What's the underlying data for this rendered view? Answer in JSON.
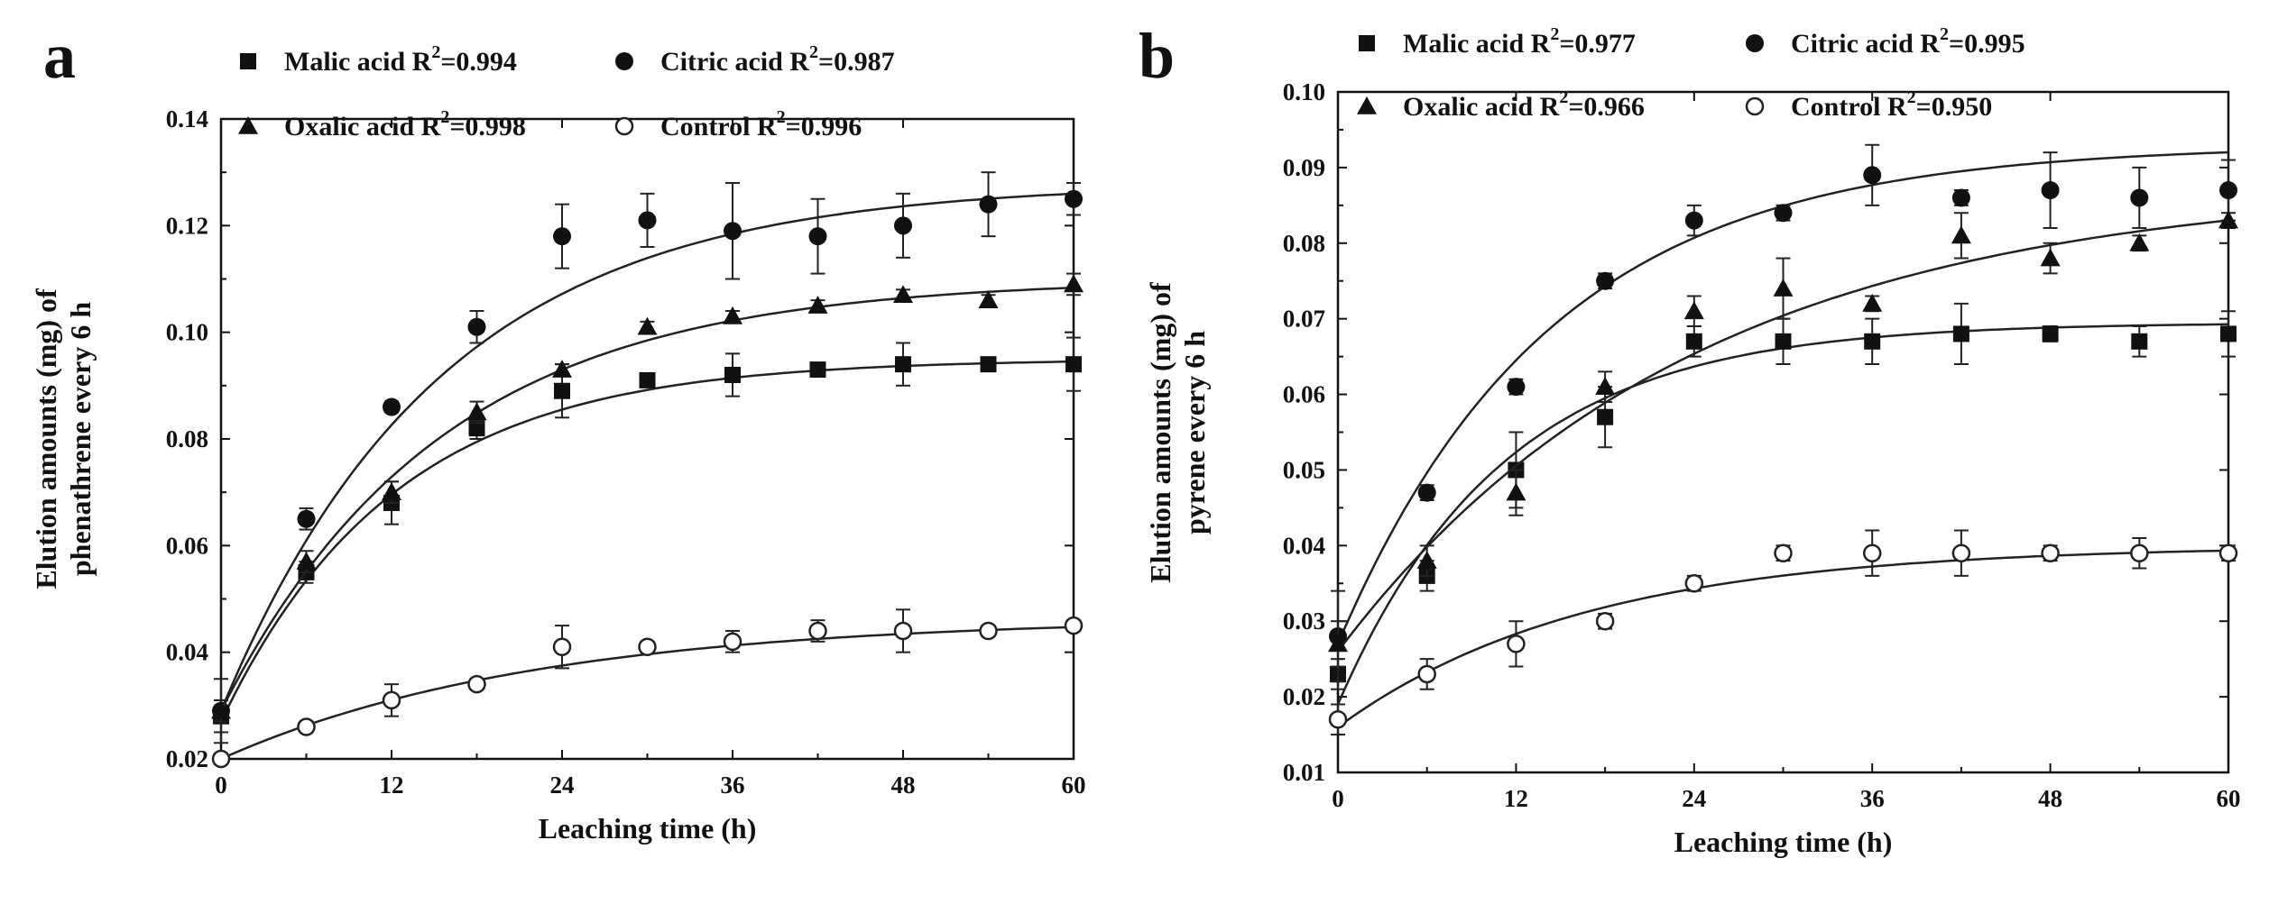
{
  "chart_data": [
    {
      "panel": "a",
      "type": "scatter",
      "xlabel": "Leaching time (h)",
      "ylabel_lines": [
        "Elution amounts (mg) of",
        "phenathrene every 6 h"
      ],
      "xlim": [
        0,
        60
      ],
      "ylim": [
        0.02,
        0.14
      ],
      "xticks": [
        0,
        12,
        24,
        36,
        48,
        60
      ],
      "yticks": [
        0.02,
        0.04,
        0.06,
        0.08,
        0.1,
        0.12,
        0.14
      ],
      "ytick_labels": [
        "0.02",
        "0.04",
        "0.06",
        "0.08",
        "0.10",
        "0.12",
        "0.14"
      ],
      "x": [
        0,
        6,
        12,
        18,
        24,
        30,
        36,
        42,
        48,
        54,
        60
      ],
      "legend": [
        {
          "label": "Malic acid R",
          "r2": "=0.994"
        },
        {
          "label": "Citric acid R",
          "r2": "=0.987"
        },
        {
          "label": "Oxalic acid R",
          "r2": "=0.998"
        },
        {
          "label": "Control R",
          "r2": "=0.996"
        }
      ],
      "series": [
        {
          "name": "Malic acid",
          "marker": "square",
          "values": [
            0.028,
            0.055,
            0.068,
            0.082,
            0.089,
            0.091,
            0.092,
            0.093,
            0.094,
            0.094,
            0.094
          ],
          "errors": [
            0.003,
            0.002,
            0.004,
            0.002,
            0.005,
            0.001,
            0.004,
            0.001,
            0.004,
            0.001,
            0.005
          ],
          "fit": {
            "y0": 0.027,
            "ymax": 0.095,
            "k": 0.082
          }
        },
        {
          "name": "Citric acid",
          "marker": "circle",
          "values": [
            0.029,
            0.065,
            0.086,
            0.101,
            0.118,
            0.121,
            0.119,
            0.118,
            0.12,
            0.124,
            0.125
          ],
          "errors": [
            0.002,
            0.002,
            0.001,
            0.003,
            0.006,
            0.005,
            0.009,
            0.007,
            0.006,
            0.006,
            0.003
          ],
          "fit": {
            "y0": 0.029,
            "ymax": 0.128,
            "k": 0.065
          }
        },
        {
          "name": "Oxalic acid",
          "marker": "triangle",
          "values": [
            0.029,
            0.057,
            0.07,
            0.085,
            0.093,
            0.101,
            0.103,
            0.105,
            0.107,
            0.106,
            0.109
          ],
          "errors": [
            0.006,
            0.002,
            0.002,
            0.002,
            0.001,
            0.001,
            0.001,
            0.001,
            0.001,
            0.001,
            0.002
          ],
          "fit": {
            "y0": 0.029,
            "ymax": 0.11,
            "k": 0.065
          }
        },
        {
          "name": "Control",
          "marker": "open-circle",
          "values": [
            0.02,
            0.026,
            0.031,
            0.034,
            0.041,
            0.041,
            0.042,
            0.044,
            0.044,
            0.044,
            0.045
          ],
          "errors": [
            0.001,
            0.001,
            0.003,
            0.001,
            0.004,
            0.001,
            0.002,
            0.002,
            0.004,
            0.001,
            0.001
          ],
          "fit": {
            "y0": 0.02,
            "ymax": 0.0465,
            "k": 0.045
          }
        }
      ]
    },
    {
      "panel": "b",
      "type": "scatter",
      "xlabel": "Leaching time (h)",
      "ylabel_lines": [
        "Elution amounts (mg) of",
        "pyrene every 6 h"
      ],
      "xlim": [
        0,
        60
      ],
      "ylim": [
        0.01,
        0.1
      ],
      "xticks": [
        0,
        12,
        24,
        36,
        48,
        60
      ],
      "yticks": [
        0.01,
        0.02,
        0.03,
        0.04,
        0.05,
        0.06,
        0.07,
        0.08,
        0.09,
        0.1
      ],
      "ytick_labels": [
        "0.01",
        "0.02",
        "0.03",
        "0.04",
        "0.05",
        "0.06",
        "0.07",
        "0.08",
        "0.09",
        "0.10"
      ],
      "x": [
        0,
        6,
        12,
        18,
        24,
        30,
        36,
        42,
        48,
        54,
        60
      ],
      "legend": [
        {
          "label": "Malic acid R",
          "r2": "=0.977"
        },
        {
          "label": "Citric acid R",
          "r2": "=0.995"
        },
        {
          "label": "Oxalic acid R",
          "r2": "=0.966"
        },
        {
          "label": "Control R",
          "r2": "=0.950"
        }
      ],
      "series": [
        {
          "name": "Malic acid",
          "marker": "square",
          "values": [
            0.023,
            0.036,
            0.05,
            0.057,
            0.067,
            0.067,
            0.067,
            0.068,
            0.068,
            0.067,
            0.068
          ],
          "errors": [
            0.002,
            0.002,
            0.005,
            0.004,
            0.002,
            0.003,
            0.003,
            0.004,
            0.001,
            0.002,
            0.003
          ],
          "fit": {
            "y0": 0.019,
            "ymax": 0.0695,
            "k": 0.09
          }
        },
        {
          "name": "Citric acid",
          "marker": "circle",
          "values": [
            0.028,
            0.047,
            0.061,
            0.075,
            0.083,
            0.084,
            0.089,
            0.086,
            0.087,
            0.086,
            0.087
          ],
          "errors": [
            0.006,
            0.001,
            0.001,
            0.001,
            0.002,
            0.001,
            0.004,
            0.001,
            0.005,
            0.004,
            0.004
          ],
          "fit": {
            "y0": 0.027,
            "ymax": 0.093,
            "k": 0.07
          }
        },
        {
          "name": "Oxalic acid",
          "marker": "triangle",
          "values": [
            0.027,
            0.038,
            0.047,
            0.061,
            0.071,
            0.074,
            0.072,
            0.081,
            0.078,
            0.08,
            0.083
          ],
          "errors": [
            0.003,
            0.002,
            0.003,
            0.002,
            0.002,
            0.004,
            0.001,
            0.003,
            0.002,
            0.001,
            0.001
          ],
          "fit": {
            "y0": 0.026,
            "ymax": 0.088,
            "k": 0.042
          }
        },
        {
          "name": "Control",
          "marker": "open-circle",
          "values": [
            0.017,
            0.023,
            0.027,
            0.03,
            0.035,
            0.039,
            0.039,
            0.039,
            0.039,
            0.039,
            0.039
          ],
          "errors": [
            0.002,
            0.002,
            0.003,
            0.001,
            0.001,
            0.001,
            0.003,
            0.003,
            0.001,
            0.002,
            0.001
          ],
          "fit": {
            "y0": 0.016,
            "ymax": 0.04,
            "k": 0.06
          }
        }
      ]
    }
  ]
}
